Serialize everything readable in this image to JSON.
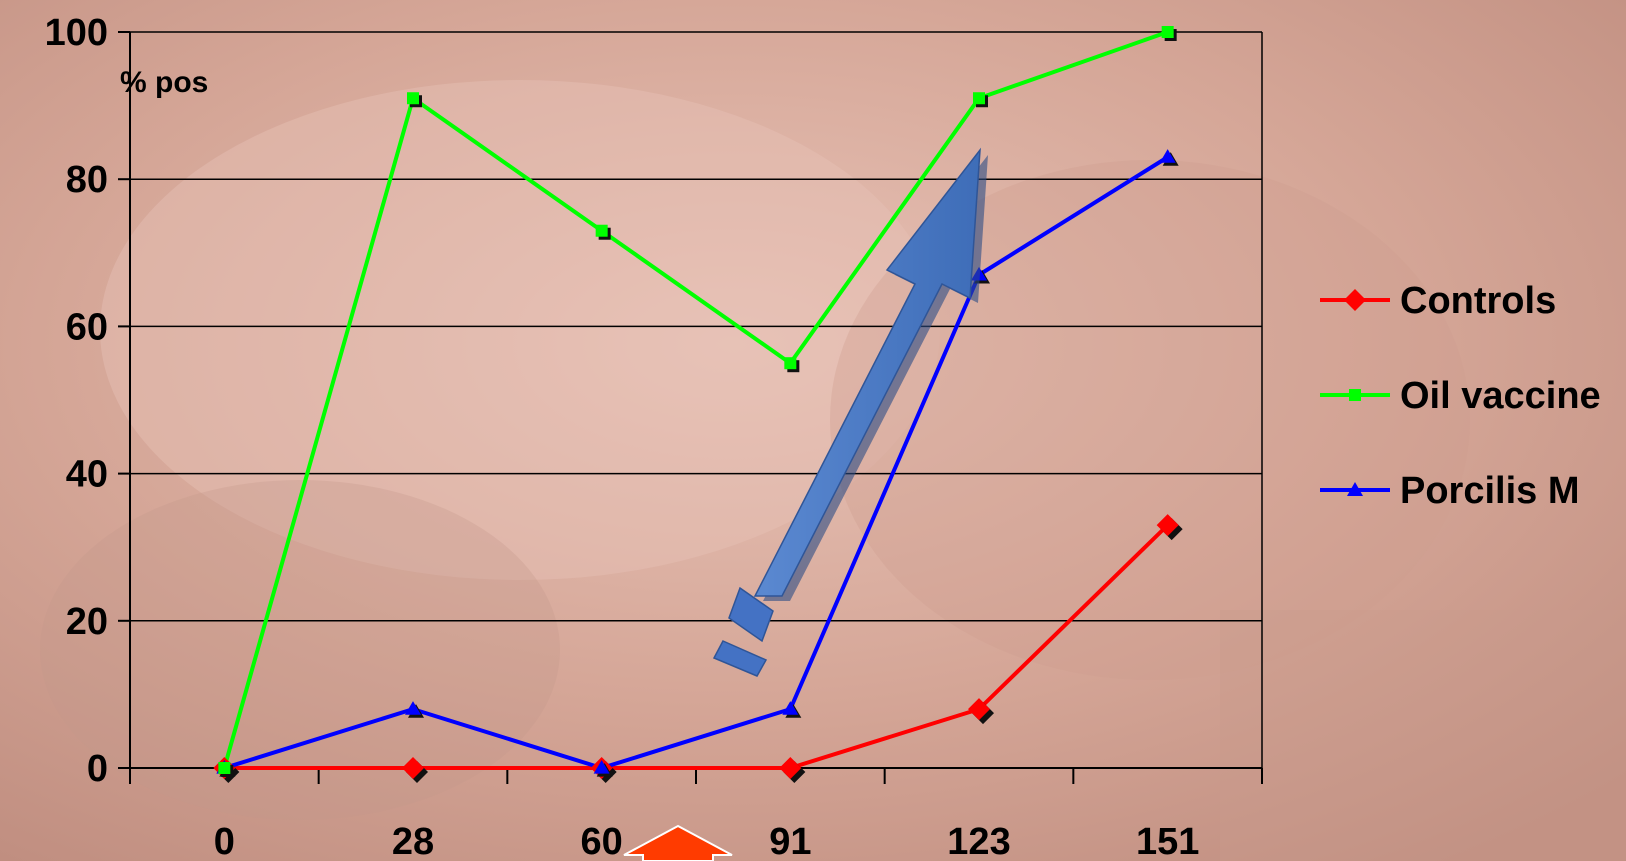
{
  "chart_data": {
    "type": "line",
    "categories": [
      "0",
      "28",
      "60",
      "91",
      "123",
      "151"
    ],
    "ylabel": "% pos",
    "ylim": [
      0,
      100
    ],
    "yticks": [
      0,
      20,
      40,
      60,
      80,
      100
    ],
    "grid": true,
    "legend_position": "right",
    "series": [
      {
        "name": "Controls",
        "values": [
          0,
          0,
          0,
          0,
          8,
          33
        ],
        "color": "#ff0000",
        "marker": "diamond"
      },
      {
        "name": "Oil vaccine",
        "values": [
          0,
          91,
          73,
          55,
          91,
          100
        ],
        "color": "#00ff00",
        "marker": "square"
      },
      {
        "name": "Porcilis M",
        "values": [
          0,
          8,
          0,
          8,
          67,
          83
        ],
        "color": "#0000ff",
        "marker": "triangle"
      }
    ],
    "annotations": [
      {
        "kind": "arrow-up",
        "color": "#ff3b00",
        "between_categories": [
          "60",
          "91"
        ]
      },
      {
        "kind": "large-diagonal-arrow",
        "color": "#4472c4"
      }
    ]
  }
}
